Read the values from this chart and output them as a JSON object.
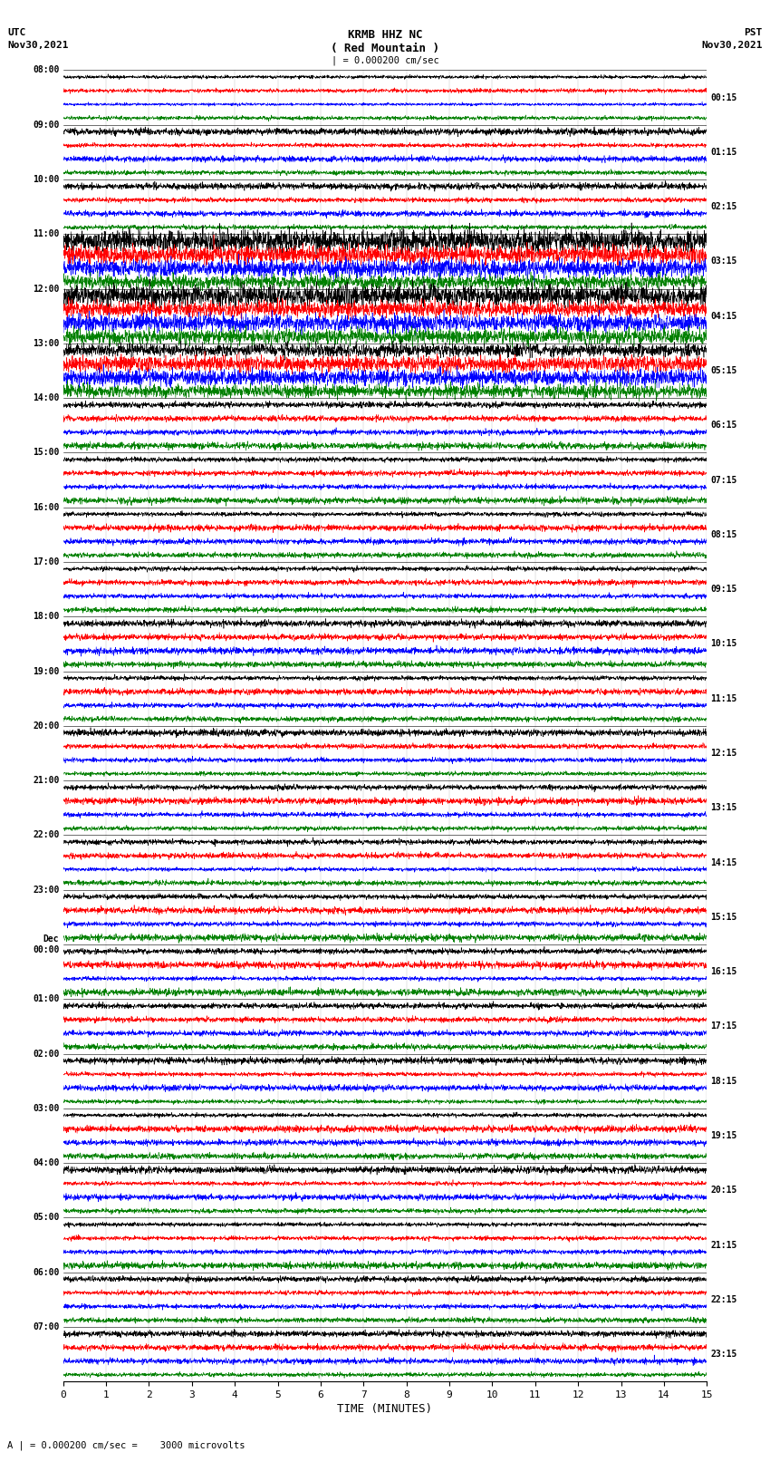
{
  "title_line1": "KRMB HHZ NC",
  "title_line2": "( Red Mountain )",
  "scale_bar": "| = 0.000200 cm/sec",
  "utc_label_line1": "UTC",
  "utc_label_line2": "Nov30,2021",
  "pst_label_line1": "PST",
  "pst_label_line2": "Nov30,2021",
  "xlabel": "TIME (MINUTES)",
  "footnote": "A | = 0.000200 cm/sec =    3000 microvolts",
  "left_times": [
    "08:00",
    "09:00",
    "10:00",
    "11:00",
    "12:00",
    "13:00",
    "14:00",
    "15:00",
    "16:00",
    "17:00",
    "18:00",
    "19:00",
    "20:00",
    "21:00",
    "22:00",
    "23:00",
    "Dec\n00:00",
    "01:00",
    "02:00",
    "03:00",
    "04:00",
    "05:00",
    "06:00",
    "07:00"
  ],
  "right_times": [
    "00:15",
    "01:15",
    "02:15",
    "03:15",
    "04:15",
    "05:15",
    "06:15",
    "07:15",
    "08:15",
    "09:15",
    "10:15",
    "11:15",
    "12:15",
    "13:15",
    "14:15",
    "15:15",
    "16:15",
    "17:15",
    "18:15",
    "19:15",
    "20:15",
    "21:15",
    "22:15",
    "23:15"
  ],
  "n_rows": 24,
  "traces_per_row": 4,
  "colors": [
    "black",
    "red",
    "blue",
    "green"
  ],
  "bg_color": "white",
  "xlim": [
    0,
    15
  ],
  "xticks": [
    0,
    1,
    2,
    3,
    4,
    5,
    6,
    7,
    8,
    9,
    10,
    11,
    12,
    13,
    14,
    15
  ],
  "noise_seed": 42,
  "n_samples": 3000,
  "base_amp": 0.06,
  "high_amp_rows": [
    3,
    4,
    5
  ],
  "high_amp_scale": 5.0,
  "med_amp_rows": [
    1,
    2,
    6,
    7,
    8,
    9,
    10,
    11,
    12,
    13,
    14,
    15,
    16,
    17,
    18,
    19,
    20,
    21,
    22,
    23
  ],
  "med_amp_scale": 1.5
}
